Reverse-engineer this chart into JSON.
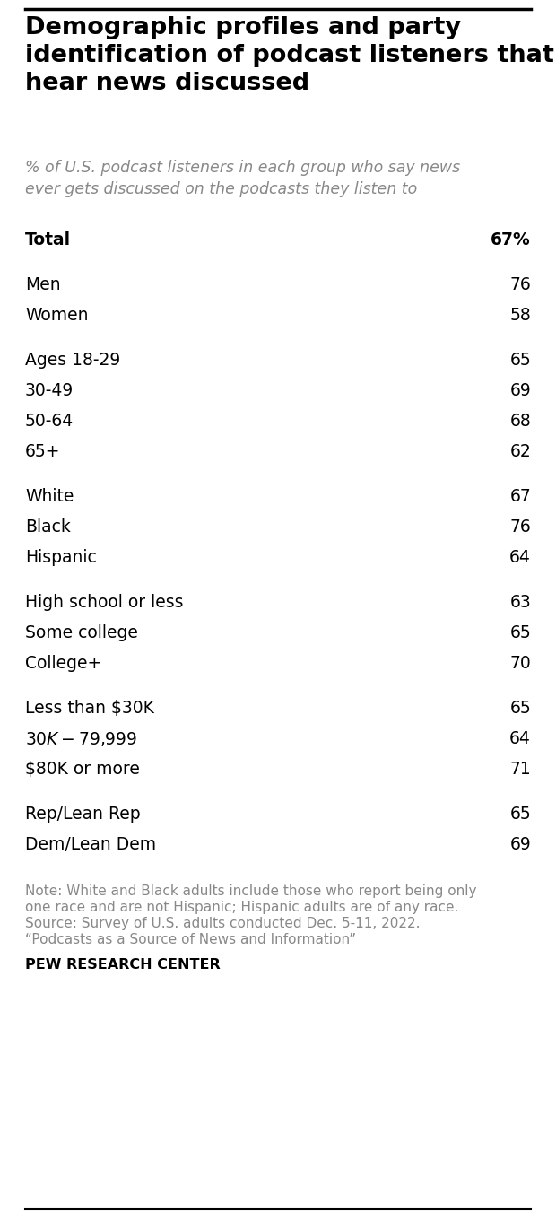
{
  "title": "Demographic profiles and party\nidentification of podcast listeners that\nhear news discussed",
  "subtitle": "% of U.S. podcast listeners in each group who say news\never gets discussed on the podcasts they listen to",
  "rows": [
    {
      "label": "Total",
      "value": "67%",
      "bold": true,
      "spacer_before": false
    },
    {
      "label": "Men",
      "value": "76",
      "bold": false,
      "spacer_before": true
    },
    {
      "label": "Women",
      "value": "58",
      "bold": false,
      "spacer_before": false
    },
    {
      "label": "Ages 18-29",
      "value": "65",
      "bold": false,
      "spacer_before": true
    },
    {
      "label": "30-49",
      "value": "69",
      "bold": false,
      "spacer_before": false
    },
    {
      "label": "50-64",
      "value": "68",
      "bold": false,
      "spacer_before": false
    },
    {
      "label": "65+",
      "value": "62",
      "bold": false,
      "spacer_before": false
    },
    {
      "label": "White",
      "value": "67",
      "bold": false,
      "spacer_before": true
    },
    {
      "label": "Black",
      "value": "76",
      "bold": false,
      "spacer_before": false
    },
    {
      "label": "Hispanic",
      "value": "64",
      "bold": false,
      "spacer_before": false
    },
    {
      "label": "High school or less",
      "value": "63",
      "bold": false,
      "spacer_before": true
    },
    {
      "label": "Some college",
      "value": "65",
      "bold": false,
      "spacer_before": false
    },
    {
      "label": "College+",
      "value": "70",
      "bold": false,
      "spacer_before": false
    },
    {
      "label": "Less than $30K",
      "value": "65",
      "bold": false,
      "spacer_before": true
    },
    {
      "label": "$30K-$79,999",
      "value": "64",
      "bold": false,
      "spacer_before": false
    },
    {
      "label": "$80K or more",
      "value": "71",
      "bold": false,
      "spacer_before": false
    },
    {
      "label": "Rep/Lean Rep",
      "value": "65",
      "bold": false,
      "spacer_before": true
    },
    {
      "label": "Dem/Lean Dem",
      "value": "69",
      "bold": false,
      "spacer_before": false
    }
  ],
  "note_lines": [
    "Note: White and Black adults include those who report being only",
    "one race and are not Hispanic; Hispanic adults are of any race.",
    "Source: Survey of U.S. adults conducted Dec. 5-11, 2022.",
    "“Podcasts as a Source of News and Information”"
  ],
  "source_label": "PEW RESEARCH CENTER",
  "bg_color": "#ffffff",
  "text_color": "#000000",
  "note_color": "#888888",
  "title_fontsize": 19.5,
  "subtitle_fontsize": 12.5,
  "row_fontsize": 13.5,
  "note_fontsize": 11,
  "source_fontsize": 11.5,
  "fig_width": 6.2,
  "fig_height": 13.6,
  "dpi": 100
}
